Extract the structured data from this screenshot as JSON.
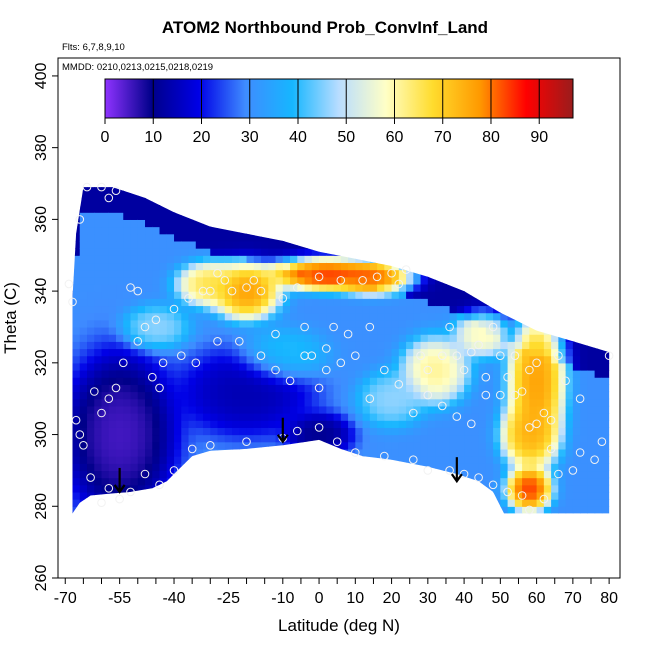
{
  "chart_data": {
    "type": "heatmap",
    "title": "ATOM2 Northbound Prob_ConvInf_Land",
    "notes": [
      "Flts: 6,7,8,9,10",
      "MMDD: 0210,0213,0215,0218,0219"
    ],
    "xlabel": "Latitude (deg N)",
    "ylabel": "Theta (C)",
    "xlim": [
      -72,
      83
    ],
    "ylim": [
      260,
      405
    ],
    "x_ticks": [
      -70,
      -55,
      -40,
      -25,
      -10,
      0,
      10,
      20,
      30,
      40,
      50,
      60,
      70,
      80
    ],
    "y_ticks": [
      260,
      280,
      300,
      320,
      340,
      360,
      380,
      400
    ],
    "colorbar": {
      "ticks": [
        0,
        10,
        20,
        30,
        40,
        50,
        60,
        70,
        80,
        90
      ],
      "range": [
        0,
        97
      ],
      "stops": [
        "#8f33ff",
        "#00008a",
        "#0000e6",
        "#3f8cff",
        "#16b6ff",
        "#b9ddff",
        "#ffffc6",
        "#ffdc2e",
        "#ff9a00",
        "#ff0000",
        "#9a1c1c"
      ]
    },
    "region": {
      "bottom": [
        [
          -68,
          278
        ],
        [
          -66,
          281
        ],
        [
          -63,
          283
        ],
        [
          -58,
          283.5
        ],
        [
          -52,
          284
        ],
        [
          -46,
          285
        ],
        [
          -42,
          287
        ],
        [
          -40,
          289
        ],
        [
          -35,
          294
        ],
        [
          -30,
          295.5
        ],
        [
          -20,
          296
        ],
        [
          -10,
          297
        ],
        [
          0,
          298.5
        ],
        [
          6,
          296
        ],
        [
          12,
          294
        ],
        [
          20,
          293
        ],
        [
          30,
          291
        ],
        [
          38,
          289
        ],
        [
          44,
          287
        ],
        [
          48,
          284
        ],
        [
          51,
          278
        ],
        [
          80,
          278
        ]
      ],
      "top": [
        [
          -68,
          338
        ],
        [
          -67,
          356
        ],
        [
          -65,
          369
        ],
        [
          -57,
          369
        ],
        [
          -48,
          366
        ],
        [
          -40,
          362
        ],
        [
          -30,
          358
        ],
        [
          -20,
          356
        ],
        [
          -10,
          354
        ],
        [
          0,
          351
        ],
        [
          10,
          349
        ],
        [
          20,
          347
        ],
        [
          30,
          344
        ],
        [
          40,
          340
        ],
        [
          50,
          334
        ],
        [
          60,
          329
        ],
        [
          70,
          326
        ],
        [
          80,
          323
        ]
      ]
    },
    "hotspots": [
      {
        "lat": -20,
        "theta": 340,
        "value": 82,
        "radius_lat": 6,
        "radius_theta": 5
      },
      {
        "lat": 2,
        "theta": 345,
        "value": 92,
        "radius_lat": 10,
        "radius_theta": 3
      },
      {
        "lat": 15,
        "theta": 344,
        "value": 88,
        "radius_lat": 7,
        "radius_theta": 3
      },
      {
        "lat": -30,
        "theta": 342,
        "value": 70,
        "radius_lat": 6,
        "radius_theta": 4
      },
      {
        "lat": 60,
        "theta": 315,
        "value": 82,
        "radius_lat": 5,
        "radius_theta": 13
      },
      {
        "lat": 58,
        "theta": 285,
        "value": 90,
        "radius_lat": 4,
        "radius_theta": 4
      },
      {
        "lat": 58,
        "theta": 300,
        "value": 78,
        "radius_lat": 5,
        "radius_theta": 6
      },
      {
        "lat": 32,
        "theta": 318,
        "value": 65,
        "radius_lat": 6,
        "radius_theta": 6
      },
      {
        "lat": 45,
        "theta": 328,
        "value": 62,
        "radius_lat": 5,
        "radius_theta": 4
      },
      {
        "lat": -45,
        "theta": 330,
        "value": 48,
        "radius_lat": 6,
        "radius_theta": 4
      },
      {
        "lat": -10,
        "theta": 322,
        "value": 42,
        "radius_lat": 8,
        "radius_theta": 5
      },
      {
        "lat": 20,
        "theta": 310,
        "value": 48,
        "radius_lat": 6,
        "radius_theta": 5
      },
      {
        "lat": -55,
        "theta": 300,
        "value": 2,
        "radius_lat": 10,
        "radius_theta": 15
      },
      {
        "lat": -20,
        "theta": 312,
        "value": 12,
        "radius_lat": 12,
        "radius_theta": 8
      },
      {
        "lat": 0,
        "theta": 300,
        "value": 8,
        "radius_lat": 6,
        "radius_theta": 4
      }
    ],
    "observations": [
      [
        -69,
        342
      ],
      [
        -68,
        337
      ],
      [
        -66,
        360
      ],
      [
        -64,
        369
      ],
      [
        -60,
        369
      ],
      [
        -58,
        366
      ],
      [
        -56,
        368
      ],
      [
        -52,
        341
      ],
      [
        -50,
        340
      ],
      [
        -48,
        330
      ],
      [
        -45,
        332
      ],
      [
        -43,
        320
      ],
      [
        -40,
        335
      ],
      [
        -36,
        338
      ],
      [
        -32,
        340
      ],
      [
        -30,
        340
      ],
      [
        -28,
        345
      ],
      [
        -26,
        343
      ],
      [
        -24,
        340
      ],
      [
        -20,
        341
      ],
      [
        -18,
        343
      ],
      [
        -16,
        340
      ],
      [
        -12,
        328
      ],
      [
        -10,
        338
      ],
      [
        -6,
        341
      ],
      [
        -4,
        330
      ],
      [
        -2,
        322
      ],
      [
        0,
        344
      ],
      [
        2,
        324
      ],
      [
        4,
        330
      ],
      [
        6,
        343
      ],
      [
        8,
        328
      ],
      [
        10,
        322
      ],
      [
        12,
        343
      ],
      [
        14,
        330
      ],
      [
        16,
        344
      ],
      [
        20,
        345
      ],
      [
        22,
        342
      ],
      [
        24,
        346
      ],
      [
        28,
        322
      ],
      [
        30,
        318
      ],
      [
        34,
        322
      ],
      [
        36,
        330
      ],
      [
        38,
        322
      ],
      [
        40,
        318
      ],
      [
        42,
        323
      ],
      [
        44,
        325
      ],
      [
        46,
        316
      ],
      [
        48,
        330
      ],
      [
        50,
        322
      ],
      [
        52,
        316
      ],
      [
        54,
        322
      ],
      [
        56,
        312
      ],
      [
        58,
        318
      ],
      [
        60,
        320
      ],
      [
        62,
        306
      ],
      [
        64,
        304
      ],
      [
        66,
        322
      ],
      [
        68,
        315
      ],
      [
        72,
        310
      ],
      [
        80,
        322
      ],
      [
        -67,
        304
      ],
      [
        -66,
        300
      ],
      [
        -65,
        297
      ],
      [
        -63,
        288
      ],
      [
        -60,
        281
      ],
      [
        -58,
        285
      ],
      [
        -55,
        282
      ],
      [
        -52,
        284
      ],
      [
        -48,
        289
      ],
      [
        -44,
        286
      ],
      [
        -40,
        290
      ],
      [
        -35,
        296
      ],
      [
        -30,
        297
      ],
      [
        -20,
        298
      ],
      [
        -10,
        299
      ],
      [
        -6,
        301
      ],
      [
        0,
        302
      ],
      [
        5,
        298
      ],
      [
        10,
        295
      ],
      [
        18,
        294
      ],
      [
        26,
        293
      ],
      [
        30,
        290
      ],
      [
        36,
        290
      ],
      [
        40,
        289
      ],
      [
        44,
        288
      ],
      [
        48,
        286
      ],
      [
        52,
        284
      ],
      [
        56,
        283
      ],
      [
        58,
        279
      ],
      [
        62,
        282
      ],
      [
        66,
        289
      ],
      [
        70,
        290
      ],
      [
        72,
        295
      ],
      [
        76,
        293
      ],
      [
        78,
        298
      ],
      [
        -62,
        312
      ],
      [
        -60,
        306
      ],
      [
        -58,
        310
      ],
      [
        -56,
        313
      ],
      [
        -54,
        320
      ],
      [
        -50,
        326
      ],
      [
        -46,
        316
      ],
      [
        -44,
        313
      ],
      [
        -38,
        322
      ],
      [
        -34,
        320
      ],
      [
        -28,
        326
      ],
      [
        -22,
        326
      ],
      [
        -16,
        322
      ],
      [
        -12,
        318
      ],
      [
        -8,
        315
      ],
      [
        -4,
        322
      ],
      [
        0,
        313
      ],
      [
        2,
        318
      ],
      [
        6,
        320
      ],
      [
        14,
        310
      ],
      [
        18,
        318
      ],
      [
        22,
        314
      ],
      [
        26,
        306
      ],
      [
        30,
        311
      ],
      [
        34,
        308
      ],
      [
        38,
        305
      ],
      [
        42,
        303
      ],
      [
        46,
        311
      ],
      [
        50,
        311
      ],
      [
        54,
        311
      ],
      [
        58,
        302
      ],
      [
        60,
        303
      ],
      [
        64,
        296
      ]
    ],
    "arrows": [
      {
        "lat": -55,
        "theta": 284
      },
      {
        "lat": -10,
        "theta": 298
      },
      {
        "lat": 38,
        "theta": 287
      }
    ]
  }
}
